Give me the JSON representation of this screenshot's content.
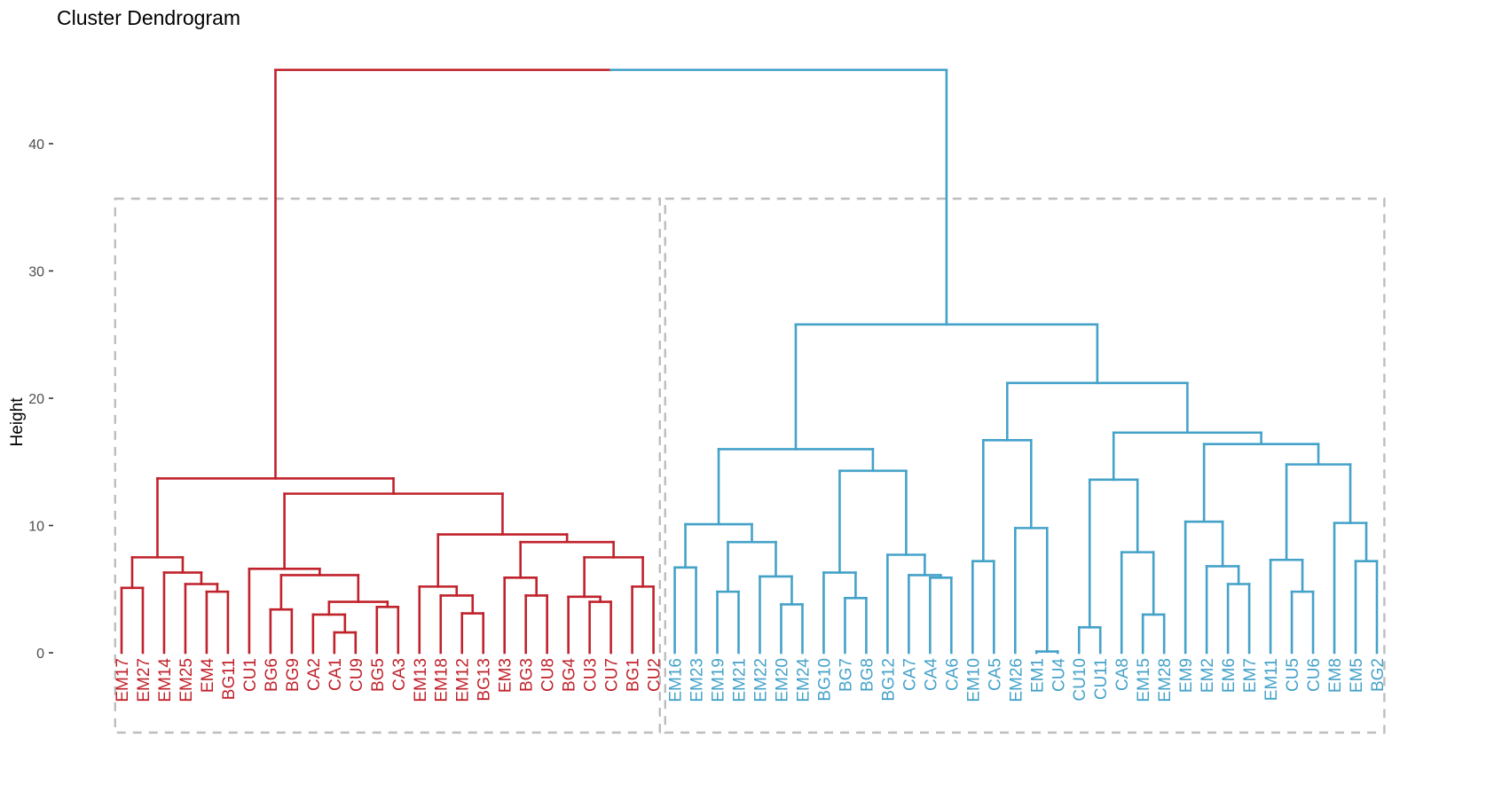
{
  "chart_data": {
    "type": "dendrogram",
    "title": "Cluster Dendrogram",
    "xlabel": "",
    "ylabel": "Height",
    "ylim": [
      0,
      46
    ],
    "yticks": [
      0,
      10,
      20,
      30,
      40
    ],
    "ytick_labels": [
      "0",
      "10",
      "20",
      "30",
      "40"
    ],
    "k": 2,
    "cluster_colors": [
      "#C0222B",
      "#44A2C9"
    ],
    "rect_border_color": "#BDBDBD",
    "leaves": [
      "EM17",
      "EM27",
      "EM14",
      "EM25",
      "EM4",
      "BG11",
      "CU1",
      "BG6",
      "BG9",
      "CA2",
      "CA1",
      "CU9",
      "BG5",
      "CA3",
      "EM13",
      "EM18",
      "EM12",
      "BG13",
      "EM3",
      "BG3",
      "CU8",
      "BG4",
      "CU3",
      "CU7",
      "BG1",
      "CU2",
      "EM16",
      "EM23",
      "EM19",
      "EM21",
      "EM22",
      "EM20",
      "EM24",
      "BG10",
      "BG7",
      "BG8",
      "BG12",
      "CA7",
      "CA4",
      "CA6",
      "EM10",
      "CA5",
      "EM26",
      "EM1",
      "CU4",
      "CU10",
      "CU11",
      "CA8",
      "EM15",
      "EM28",
      "EM9",
      "EM2",
      "EM6",
      "EM7",
      "EM11",
      "CU5",
      "CU6",
      "EM8",
      "EM5",
      "BG2"
    ],
    "leaf_cluster": [
      0,
      0,
      0,
      0,
      0,
      0,
      0,
      0,
      0,
      0,
      0,
      0,
      0,
      0,
      0,
      0,
      0,
      0,
      0,
      0,
      0,
      0,
      0,
      0,
      0,
      0,
      1,
      1,
      1,
      1,
      1,
      1,
      1,
      1,
      1,
      1,
      1,
      1,
      1,
      1,
      1,
      1,
      1,
      1,
      1,
      1,
      1,
      1,
      1,
      1,
      1,
      1,
      1,
      1,
      1,
      1,
      1,
      1,
      1,
      1
    ],
    "tree": {
      "h": 45.8,
      "c": [
        {
          "h": 13.7,
          "c": [
            {
              "h": 7.5,
              "c": [
                {
                  "h": 5.1,
                  "c": [
                    "EM17",
                    "EM27"
                  ]
                },
                {
                  "h": 6.3,
                  "c": [
                    "EM14",
                    {
                      "h": 5.4,
                      "c": [
                        "EM25",
                        {
                          "h": 4.8,
                          "c": [
                            "EM4",
                            "BG11"
                          ]
                        }
                      ]
                    }
                  ]
                }
              ]
            },
            {
              "h": 12.5,
              "c": [
                {
                  "h": 6.6,
                  "c": [
                    "CU1",
                    {
                      "h": 6.1,
                      "c": [
                        {
                          "h": 3.4,
                          "c": [
                            "BG6",
                            "BG9"
                          ]
                        },
                        {
                          "h": 4.0,
                          "c": [
                            {
                              "h": 3.0,
                              "c": [
                                "CA2",
                                {
                                  "h": 1.6,
                                  "c": [
                                    "CA1",
                                    "CU9"
                                  ]
                                }
                              ]
                            },
                            {
                              "h": 3.6,
                              "c": [
                                "BG5",
                                "CA3"
                              ]
                            }
                          ]
                        }
                      ]
                    }
                  ]
                },
                {
                  "h": 9.3,
                  "c": [
                    {
                      "h": 5.2,
                      "c": [
                        "EM13",
                        {
                          "h": 4.5,
                          "c": [
                            "EM18",
                            {
                              "h": 3.1,
                              "c": [
                                "EM12",
                                "BG13"
                              ]
                            }
                          ]
                        }
                      ]
                    },
                    {
                      "h": 8.7,
                      "c": [
                        {
                          "h": 5.9,
                          "c": [
                            "EM3",
                            {
                              "h": 4.5,
                              "c": [
                                "BG3",
                                "CU8"
                              ]
                            }
                          ]
                        },
                        {
                          "h": 7.5,
                          "c": [
                            {
                              "h": 4.4,
                              "c": [
                                "BG4",
                                {
                                  "h": 4.0,
                                  "c": [
                                    "CU3",
                                    "CU7"
                                  ]
                                }
                              ]
                            },
                            {
                              "h": 5.2,
                              "c": [
                                "BG1",
                                "CU2"
                              ]
                            }
                          ]
                        }
                      ]
                    }
                  ]
                }
              ]
            }
          ]
        },
        {
          "h": 25.8,
          "c": [
            {
              "h": 16.0,
              "c": [
                {
                  "h": 10.1,
                  "c": [
                    {
                      "h": 6.7,
                      "c": [
                        "EM16",
                        "EM23"
                      ]
                    },
                    {
                      "h": 8.7,
                      "c": [
                        {
                          "h": 4.8,
                          "c": [
                            "EM19",
                            "EM21"
                          ]
                        },
                        {
                          "h": 6.0,
                          "c": [
                            "EM22",
                            {
                              "h": 3.8,
                              "c": [
                                "EM20",
                                "EM24"
                              ]
                            }
                          ]
                        }
                      ]
                    }
                  ]
                },
                {
                  "h": 14.3,
                  "c": [
                    {
                      "h": 6.3,
                      "c": [
                        "BG10",
                        {
                          "h": 4.3,
                          "c": [
                            "BG7",
                            "BG8"
                          ]
                        }
                      ]
                    },
                    {
                      "h": 7.7,
                      "c": [
                        "BG12",
                        {
                          "h": 6.1,
                          "c": [
                            "CA7",
                            {
                              "h": 5.9,
                              "c": [
                                "CA4",
                                "CA6"
                              ]
                            }
                          ]
                        }
                      ]
                    }
                  ]
                }
              ]
            },
            {
              "h": 21.2,
              "c": [
                {
                  "h": 16.7,
                  "c": [
                    {
                      "h": 7.2,
                      "c": [
                        "EM10",
                        "CA5"
                      ]
                    },
                    {
                      "h": 9.8,
                      "c": [
                        "EM26",
                        {
                          "h": 0.1,
                          "c": [
                            "EM1",
                            "CU4"
                          ]
                        }
                      ]
                    }
                  ]
                },
                {
                  "h": 17.3,
                  "c": [
                    {
                      "h": 13.6,
                      "c": [
                        {
                          "h": 2.0,
                          "c": [
                            "CU10",
                            "CU11"
                          ]
                        },
                        {
                          "h": 7.9,
                          "c": [
                            "CA8",
                            {
                              "h": 3.0,
                              "c": [
                                "EM15",
                                "EM28"
                              ]
                            }
                          ]
                        }
                      ]
                    },
                    {
                      "h": 16.4,
                      "c": [
                        {
                          "h": 10.3,
                          "c": [
                            "EM9",
                            {
                              "h": 6.8,
                              "c": [
                                "EM2",
                                {
                                  "h": 5.4,
                                  "c": [
                                    "EM6",
                                    "EM7"
                                  ]
                                }
                              ]
                            }
                          ]
                        },
                        {
                          "h": 14.8,
                          "c": [
                            {
                              "h": 7.3,
                              "c": [
                                "EM11",
                                {
                                  "h": 4.8,
                                  "c": [
                                    "CU5",
                                    "CU6"
                                  ]
                                }
                              ]
                            },
                            {
                              "h": 10.2,
                              "c": [
                                "EM8",
                                {
                                  "h": 7.2,
                                  "c": [
                                    "EM5",
                                    "BG2"
                                  ]
                                }
                              ]
                            }
                          ]
                        }
                      ]
                    }
                  ]
                }
              ]
            }
          ]
        }
      ]
    }
  }
}
